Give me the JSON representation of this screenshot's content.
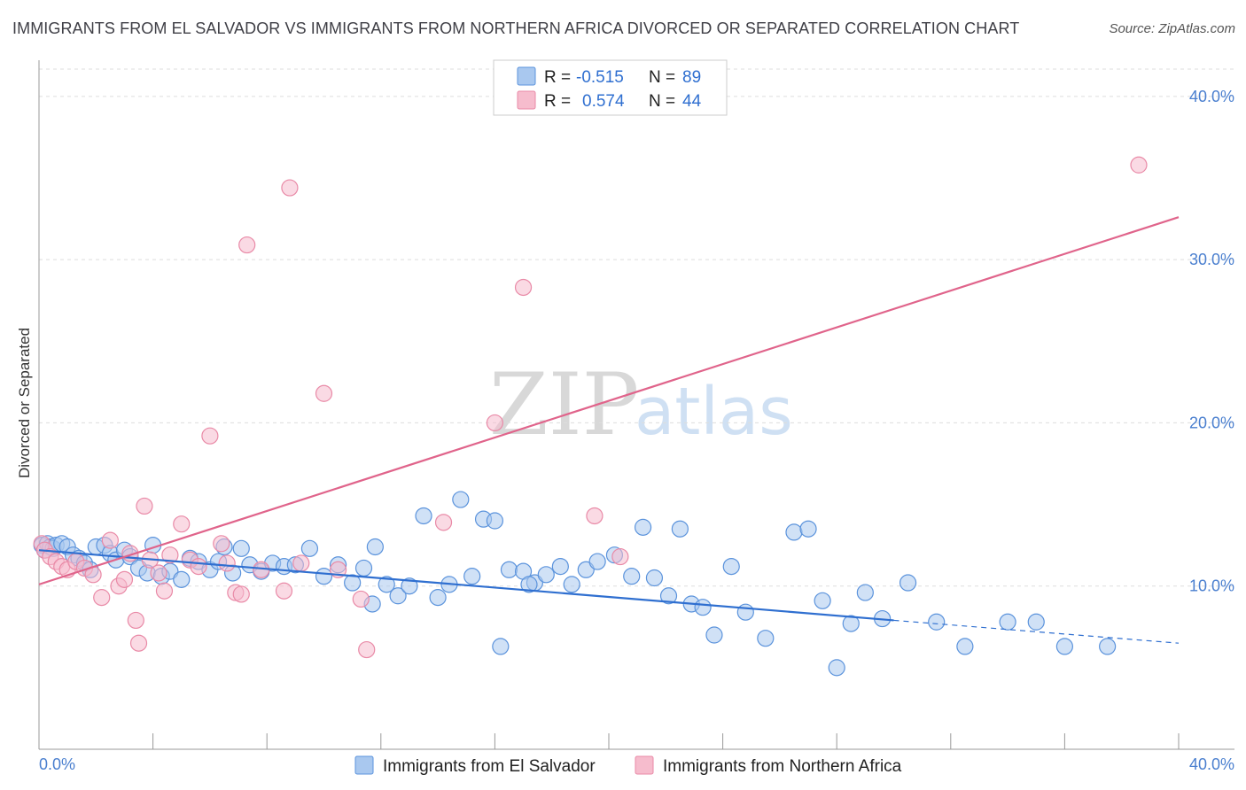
{
  "title": "IMMIGRANTS FROM EL SALVADOR VS IMMIGRANTS FROM NORTHERN AFRICA DIVORCED OR SEPARATED CORRELATION CHART",
  "source": "Source: ZipAtlas.com",
  "watermark": {
    "zip": "ZIP",
    "atlas": "atlas"
  },
  "legend": {
    "r_label": "R =",
    "n_label": "N =",
    "rows": [
      {
        "r": "-0.515",
        "n": "89"
      },
      {
        "r": "0.574",
        "n": "44"
      }
    ]
  },
  "colors": {
    "blue_fill": "#a9c8ef",
    "blue_stroke": "#5b93dc",
    "blue_line": "#2f6fd0",
    "pink_fill": "#f6bccd",
    "pink_stroke": "#e98aa7",
    "pink_line": "#e0648b",
    "tick_color": "#4a7fcf"
  },
  "chart_data": {
    "type": "scatter",
    "title": "IMMIGRANTS FROM EL SALVADOR VS IMMIGRANTS FROM NORTHERN AFRICA DIVORCED OR SEPARATED CORRELATION CHART",
    "xlabel": "",
    "ylabel": "Divorced or Separated",
    "xlim": [
      0,
      40
    ],
    "ylim": [
      0,
      42
    ],
    "x_tick_labels": [
      "0.0%",
      "40.0%"
    ],
    "y_ticks": [
      10,
      20,
      30,
      40
    ],
    "y_tick_labels": [
      "10.0%",
      "20.0%",
      "30.0%",
      "40.0%"
    ],
    "grid": true,
    "legend_position": "top-center",
    "series": [
      {
        "name": "Immigrants from El Salvador",
        "color": "#5b93dc",
        "trend": {
          "x": [
            0,
            30
          ],
          "y": [
            12.2,
            7.9
          ],
          "dashed_extension_to": [
            40,
            6.5
          ]
        },
        "points": [
          [
            0.1,
            12.5
          ],
          [
            0.2,
            12.2
          ],
          [
            0.3,
            12.6
          ],
          [
            0.4,
            12.4
          ],
          [
            0.5,
            12.3
          ],
          [
            0.6,
            12.5
          ],
          [
            0.8,
            12.6
          ],
          [
            1.0,
            12.4
          ],
          [
            1.2,
            11.9
          ],
          [
            1.4,
            11.7
          ],
          [
            1.6,
            11.4
          ],
          [
            1.8,
            11.0
          ],
          [
            2.0,
            12.4
          ],
          [
            2.3,
            12.5
          ],
          [
            2.5,
            12.0
          ],
          [
            2.7,
            11.6
          ],
          [
            3.0,
            12.2
          ],
          [
            3.2,
            11.8
          ],
          [
            3.5,
            11.1
          ],
          [
            3.8,
            10.8
          ],
          [
            4.0,
            12.5
          ],
          [
            4.3,
            10.6
          ],
          [
            4.6,
            10.9
          ],
          [
            5.0,
            10.4
          ],
          [
            5.3,
            11.7
          ],
          [
            5.6,
            11.5
          ],
          [
            6.0,
            11.0
          ],
          [
            6.3,
            11.5
          ],
          [
            6.5,
            12.4
          ],
          [
            6.8,
            10.8
          ],
          [
            7.1,
            12.3
          ],
          [
            7.4,
            11.3
          ],
          [
            7.8,
            10.9
          ],
          [
            8.2,
            11.4
          ],
          [
            8.6,
            11.2
          ],
          [
            9.0,
            11.3
          ],
          [
            9.5,
            12.3
          ],
          [
            10.0,
            10.6
          ],
          [
            10.5,
            11.3
          ],
          [
            11.0,
            10.2
          ],
          [
            11.4,
            11.1
          ],
          [
            11.8,
            12.4
          ],
          [
            12.2,
            10.1
          ],
          [
            12.6,
            9.4
          ],
          [
            13.0,
            10.0
          ],
          [
            13.5,
            14.3
          ],
          [
            14.0,
            9.3
          ],
          [
            14.4,
            10.1
          ],
          [
            14.8,
            15.3
          ],
          [
            15.2,
            10.6
          ],
          [
            15.6,
            14.1
          ],
          [
            16.0,
            14.0
          ],
          [
            16.5,
            11.0
          ],
          [
            17.0,
            10.9
          ],
          [
            17.4,
            10.2
          ],
          [
            17.8,
            10.7
          ],
          [
            18.3,
            11.2
          ],
          [
            18.7,
            10.1
          ],
          [
            19.2,
            11.0
          ],
          [
            19.6,
            11.5
          ],
          [
            20.2,
            11.9
          ],
          [
            20.8,
            10.6
          ],
          [
            21.2,
            13.6
          ],
          [
            21.6,
            10.5
          ],
          [
            22.1,
            9.4
          ],
          [
            22.5,
            13.5
          ],
          [
            22.9,
            8.9
          ],
          [
            23.3,
            8.7
          ],
          [
            23.7,
            7.0
          ],
          [
            24.3,
            11.2
          ],
          [
            24.8,
            8.4
          ],
          [
            25.5,
            6.8
          ],
          [
            26.5,
            13.3
          ],
          [
            27.0,
            13.5
          ],
          [
            27.5,
            9.1
          ],
          [
            28.0,
            5.0
          ],
          [
            28.5,
            7.7
          ],
          [
            29.0,
            9.6
          ],
          [
            29.6,
            8.0
          ],
          [
            30.5,
            10.2
          ],
          [
            31.5,
            7.8
          ],
          [
            32.5,
            6.3
          ],
          [
            34.0,
            7.8
          ],
          [
            35.0,
            7.8
          ],
          [
            36.0,
            6.3
          ],
          [
            37.5,
            6.3
          ],
          [
            11.7,
            8.9
          ],
          [
            16.2,
            6.3
          ],
          [
            17.2,
            10.1
          ]
        ]
      },
      {
        "name": "Immigrants from Northern Africa",
        "color": "#e98aa7",
        "trend": {
          "x": [
            0,
            40
          ],
          "y": [
            10.1,
            32.6
          ]
        },
        "points": [
          [
            0.1,
            12.6
          ],
          [
            0.2,
            12.2
          ],
          [
            0.4,
            11.8
          ],
          [
            0.6,
            11.5
          ],
          [
            0.8,
            11.2
          ],
          [
            1.0,
            11.0
          ],
          [
            1.3,
            11.5
          ],
          [
            1.6,
            11.1
          ],
          [
            1.9,
            10.7
          ],
          [
            2.2,
            9.3
          ],
          [
            2.5,
            12.8
          ],
          [
            2.8,
            10.0
          ],
          [
            3.0,
            10.4
          ],
          [
            3.2,
            12.0
          ],
          [
            3.4,
            7.9
          ],
          [
            3.5,
            6.5
          ],
          [
            3.7,
            14.9
          ],
          [
            3.9,
            11.6
          ],
          [
            4.2,
            10.8
          ],
          [
            4.4,
            9.7
          ],
          [
            4.6,
            11.9
          ],
          [
            5.0,
            13.8
          ],
          [
            5.3,
            11.6
          ],
          [
            5.6,
            11.2
          ],
          [
            6.0,
            19.2
          ],
          [
            6.4,
            12.6
          ],
          [
            6.6,
            11.4
          ],
          [
            6.9,
            9.6
          ],
          [
            7.1,
            9.5
          ],
          [
            7.3,
            30.9
          ],
          [
            7.8,
            11.0
          ],
          [
            8.6,
            9.7
          ],
          [
            8.8,
            34.4
          ],
          [
            9.2,
            11.4
          ],
          [
            10.0,
            21.8
          ],
          [
            10.5,
            11.0
          ],
          [
            11.3,
            9.2
          ],
          [
            11.5,
            6.1
          ],
          [
            14.2,
            13.9
          ],
          [
            16.0,
            20.0
          ],
          [
            17.0,
            28.3
          ],
          [
            19.5,
            14.3
          ],
          [
            20.4,
            11.8
          ],
          [
            38.6,
            35.8
          ]
        ]
      }
    ]
  }
}
